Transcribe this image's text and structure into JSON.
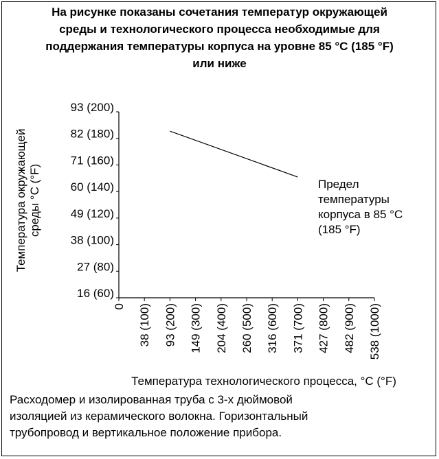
{
  "title_lines": [
    "На рисунке показаны сочетания температур окружающей",
    "среды и технологического процесса необходимые для",
    "поддержания температуры корпуса на уровне 85 °C (185 °F)",
    "или ниже"
  ],
  "chart_data": {
    "type": "line",
    "ylabel_lines": [
      "Температура окружающей",
      "среды °C (°F)"
    ],
    "xlabel": "Температура технологического процесса, °C (°F)",
    "y_ticks": [
      {
        "value": 16,
        "label": "16 (60)"
      },
      {
        "value": 27,
        "label": "27 (80)"
      },
      {
        "value": 38,
        "label": "38 (100)"
      },
      {
        "value": 49,
        "label": "49 (120)"
      },
      {
        "value": 60,
        "label": "60 (140)"
      },
      {
        "value": 71,
        "label": "71 (160)"
      },
      {
        "value": 82,
        "label": "82 (180)"
      },
      {
        "value": 93,
        "label": "93 (200)"
      }
    ],
    "x_ticks": [
      {
        "value": 0,
        "label": "0"
      },
      {
        "value": 38,
        "label": "38 (100)"
      },
      {
        "value": 93,
        "label": "93 (200)"
      },
      {
        "value": 149,
        "label": "149 (300)"
      },
      {
        "value": 204,
        "label": "204 (400)"
      },
      {
        "value": 260,
        "label": "260 (500)"
      },
      {
        "value": 316,
        "label": "316 (600)"
      },
      {
        "value": 371,
        "label": "371 (700)"
      },
      {
        "value": 427,
        "label": "427 (800)"
      },
      {
        "value": 482,
        "label": "482 (900)"
      },
      {
        "value": 538,
        "label": "538 (1000)"
      }
    ],
    "series": [
      {
        "x": [
          93,
          371
        ],
        "y": [
          85,
          66
        ]
      }
    ],
    "annotation_lines": [
      "Предел",
      "температуры",
      "корпуса в 85 °C",
      "(185 °F)"
    ]
  },
  "caption_lines": [
    "Расходомер и изолированная труба с 3-х дюймовой",
    "изоляцией из керамического волокна. Горизонтальный",
    "трубопровод и вертикальное положение прибора."
  ]
}
